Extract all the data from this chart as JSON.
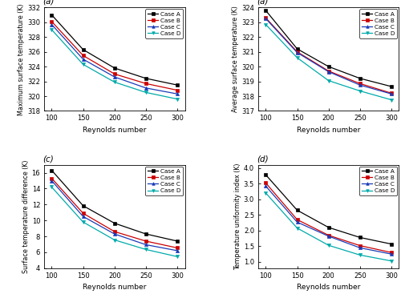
{
  "reynolds": [
    100,
    150,
    200,
    250,
    300
  ],
  "panel_a": {
    "title": "(a)",
    "ylabel": "Maximum surface temperature (K)",
    "ylim": [
      318,
      332
    ],
    "yticks": [
      318,
      320,
      322,
      324,
      326,
      328,
      330,
      332
    ],
    "case_A": [
      331.0,
      326.3,
      323.8,
      322.4,
      321.5
    ],
    "case_B": [
      330.1,
      325.5,
      323.0,
      321.7,
      320.8
    ],
    "case_C": [
      329.7,
      325.0,
      322.6,
      321.1,
      320.3
    ],
    "case_D": [
      329.0,
      324.3,
      321.9,
      320.5,
      319.6
    ]
  },
  "panel_b": {
    "title": "(a)",
    "ylabel": "Average surface temperature (K)",
    "ylim": [
      317,
      324
    ],
    "yticks": [
      317,
      318,
      319,
      320,
      321,
      322,
      323,
      324
    ],
    "case_A": [
      323.8,
      321.2,
      320.0,
      319.2,
      318.65
    ],
    "case_B": [
      323.3,
      321.0,
      319.7,
      318.85,
      318.2
    ],
    "case_C": [
      323.25,
      320.95,
      319.65,
      318.75,
      318.15
    ],
    "case_D": [
      322.85,
      320.6,
      319.05,
      318.35,
      317.75
    ]
  },
  "panel_c": {
    "title": "(c)",
    "ylabel": "Surface temperature difference (K)",
    "ylim": [
      4,
      17
    ],
    "yticks": [
      4,
      6,
      8,
      10,
      12,
      14,
      16
    ],
    "case_A": [
      16.3,
      11.85,
      9.65,
      8.3,
      7.4
    ],
    "case_B": [
      15.3,
      10.9,
      8.6,
      7.4,
      6.55
    ],
    "case_C": [
      15.0,
      10.5,
      8.3,
      6.95,
      6.2
    ],
    "case_D": [
      14.2,
      9.8,
      7.55,
      6.35,
      5.45
    ]
  },
  "panel_d": {
    "title": "(d)",
    "ylabel": "Temperature uniformity index (K)",
    "ylim": [
      0.8,
      4.1
    ],
    "yticks": [
      1.0,
      1.5,
      2.0,
      2.5,
      3.0,
      3.5,
      4.0
    ],
    "case_A": [
      3.78,
      2.65,
      2.1,
      1.78,
      1.57
    ],
    "case_B": [
      3.52,
      2.35,
      1.85,
      1.52,
      1.3
    ],
    "case_C": [
      3.42,
      2.27,
      1.82,
      1.45,
      1.25
    ],
    "case_D": [
      3.2,
      2.08,
      1.53,
      1.22,
      1.03
    ]
  },
  "colors": {
    "case_A": "#000000",
    "case_B": "#cc0000",
    "case_C": "#1a3ab8",
    "case_D": "#00aaaa"
  },
  "markers": {
    "case_A": "s",
    "case_B": "s",
    "case_C": "^",
    "case_D": "v"
  },
  "legend_labels": [
    "Case A",
    "Case B",
    "Case C",
    "Case D"
  ],
  "xlabel": "Reynolds number"
}
